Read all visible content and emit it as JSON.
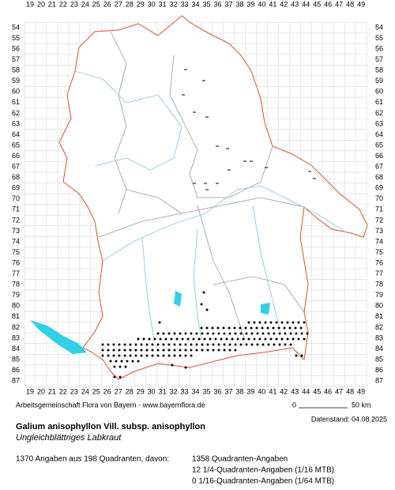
{
  "map": {
    "x_labels": [
      19,
      20,
      21,
      22,
      23,
      24,
      25,
      26,
      27,
      28,
      29,
      30,
      31,
      32,
      33,
      34,
      35,
      36,
      37,
      38,
      39,
      40,
      41,
      42,
      43,
      44,
      45,
      46,
      47,
      48,
      49
    ],
    "y_labels": [
      54,
      55,
      56,
      57,
      58,
      59,
      60,
      61,
      62,
      63,
      64,
      65,
      66,
      67,
      68,
      69,
      70,
      71,
      72,
      73,
      74,
      75,
      76,
      77,
      78,
      79,
      80,
      81,
      82,
      83,
      84,
      85,
      86,
      87
    ],
    "credit": "Arbeitsgemeinschaft Flora von Bayern - www.bayernflora.de",
    "scale_start": "0",
    "scale_end": "50 km",
    "date": "Datenstand: 04.08.2025",
    "title": "Galium anisophyllon Vill. subsp. anisophyllon",
    "subtitle": "Ungleichblättriges Labkraut",
    "summary": "1370 Angaben aus 198 Quadranten, davon:",
    "counts": [
      "1358 Quadranten-Angaben",
      "12 1/4-Quadranten-Angaben (1/16 MTB)",
      "0 1/16-Quadranten-Angaben (1/64 MTB)"
    ]
  }
}
